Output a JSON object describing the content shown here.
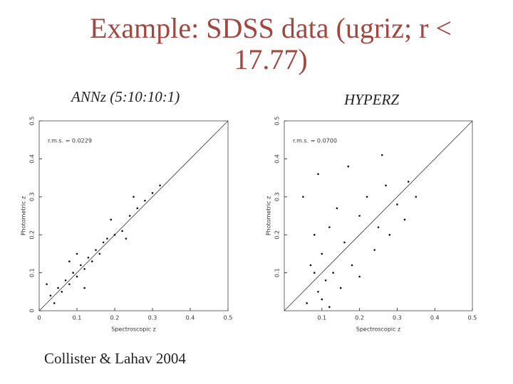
{
  "title": "Example: SDSS data (ugriz; r < 17.77)",
  "credit": "Collister & Lahav 2004",
  "chart_data": [
    {
      "type": "scatter",
      "title": "ANNz (5:10:10:1)",
      "annotation": "r.m.s. = 0.0229",
      "xlabel": "Spectroscopic z",
      "ylabel": "Photometric z",
      "xlim": [
        0,
        0.5
      ],
      "ylim": [
        0,
        0.5
      ],
      "xticks": [
        0,
        0.1,
        0.2,
        0.3,
        0.4,
        0.5
      ],
      "yticks": [
        0,
        0.1,
        0.2,
        0.3,
        0.4,
        0.5
      ],
      "color": "#111111",
      "x": [
        0.03,
        0.05,
        0.06,
        0.07,
        0.08,
        0.09,
        0.1,
        0.11,
        0.12,
        0.13,
        0.14,
        0.15,
        0.16,
        0.17,
        0.18,
        0.2,
        0.22,
        0.24,
        0.26,
        0.28,
        0.3,
        0.32,
        0.02,
        0.08,
        0.12,
        0.19,
        0.25,
        0.04,
        0.1,
        0.23
      ],
      "y": [
        0.04,
        0.06,
        0.05,
        0.08,
        0.07,
        0.1,
        0.09,
        0.12,
        0.11,
        0.14,
        0.13,
        0.16,
        0.15,
        0.18,
        0.19,
        0.2,
        0.21,
        0.25,
        0.27,
        0.29,
        0.31,
        0.33,
        0.07,
        0.13,
        0.06,
        0.24,
        0.3,
        0.02,
        0.15,
        0.19
      ]
    },
    {
      "type": "scatter",
      "title": "HYPERZ",
      "annotation": "r.m.s. = 0.0700",
      "xlabel": "Spectroscopic z",
      "ylabel": "Photometric z",
      "xlim": [
        0,
        0.5
      ],
      "ylim": [
        0,
        0.5
      ],
      "xticks": [
        0.1,
        0.2,
        0.3,
        0.4,
        0.5
      ],
      "yticks": [
        0.1,
        0.2,
        0.3,
        0.4,
        0.5
      ],
      "color": "#111111",
      "x": [
        0.06,
        0.07,
        0.08,
        0.09,
        0.1,
        0.1,
        0.11,
        0.12,
        0.12,
        0.13,
        0.14,
        0.15,
        0.16,
        0.18,
        0.2,
        0.2,
        0.22,
        0.24,
        0.25,
        0.27,
        0.28,
        0.3,
        0.32,
        0.33,
        0.35,
        0.05,
        0.09,
        0.17,
        0.26,
        0.08
      ],
      "y": [
        0.02,
        0.12,
        0.2,
        0.05,
        0.03,
        0.15,
        0.08,
        0.01,
        0.22,
        0.1,
        0.27,
        0.06,
        0.18,
        0.12,
        0.25,
        0.09,
        0.3,
        0.16,
        0.22,
        0.33,
        0.2,
        0.28,
        0.24,
        0.34,
        0.3,
        0.3,
        0.36,
        0.38,
        0.41,
        0.1
      ]
    }
  ]
}
